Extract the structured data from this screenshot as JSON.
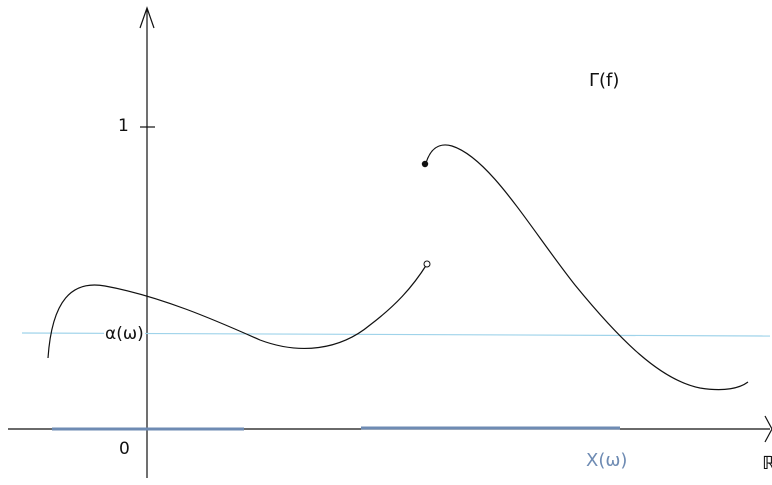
{
  "labels": {
    "tick_one": "1",
    "tick_zero": "0",
    "graph_name": "Γ(f)",
    "level": "α(ω)",
    "set_name": "X(ω)",
    "reals": "ℝ"
  },
  "colors": {
    "ink": "#111111",
    "level_line": "#9fd3ea",
    "set_segments": "#6e8bb3",
    "set_label": "#6e8bb3"
  }
}
